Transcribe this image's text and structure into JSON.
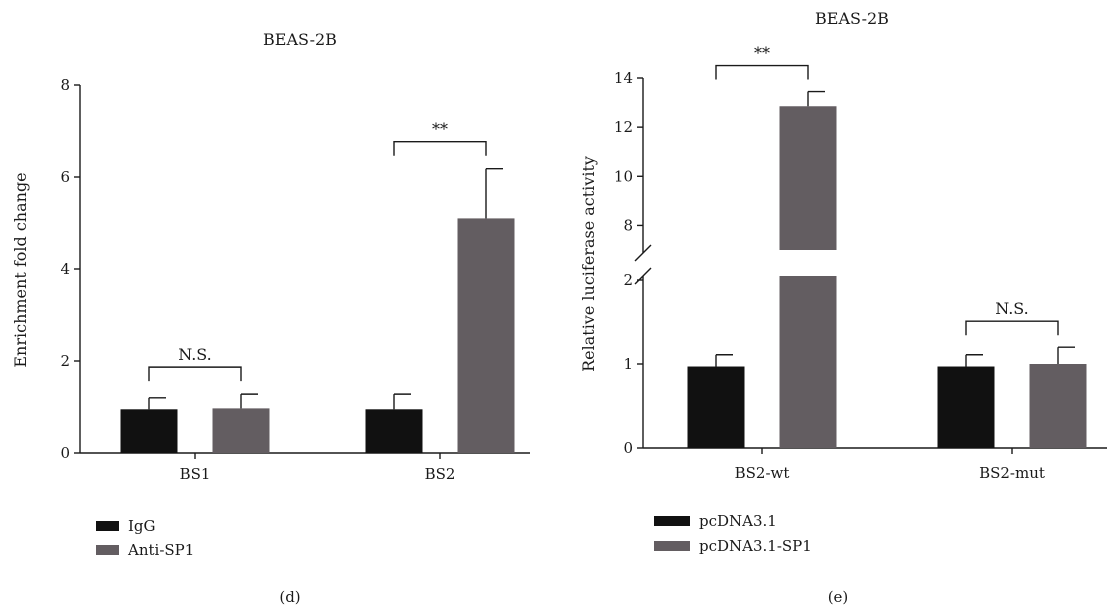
{
  "chart_data": [
    {
      "panel_label": "(d)",
      "type": "bar",
      "title": "BEAS-2B",
      "ylabel": "Enrichment fold change",
      "xlabel": "",
      "ylim": [
        0,
        8
      ],
      "yticks": [
        "0",
        "2",
        "4",
        "6",
        "8"
      ],
      "categories": [
        "BS1",
        "BS2"
      ],
      "series": [
        {
          "name": "IgG",
          "color": "#111111",
          "values": [
            0.95,
            0.95
          ],
          "errors": [
            0.25,
            0.33
          ]
        },
        {
          "name": "Anti-SP1",
          "color": "#635d61",
          "values": [
            0.97,
            5.1
          ],
          "errors": [
            0.31,
            1.08
          ]
        }
      ],
      "annotations": [
        {
          "category": "BS1",
          "text": "N.S."
        },
        {
          "category": "BS2",
          "text": "**"
        }
      ],
      "legend_position": "bottom-left",
      "grid": false
    },
    {
      "panel_label": "(e)",
      "type": "bar",
      "title": "BEAS-2B",
      "ylabel": "Relative luciferase activity",
      "xlabel": "",
      "y_axis_break": {
        "lower": [
          0,
          2
        ],
        "upper": [
          7,
          14
        ]
      },
      "yticks": [
        "0",
        "1",
        "2",
        "8",
        "10",
        "12",
        "14"
      ],
      "categories": [
        "BS2-wt",
        "BS2-mut"
      ],
      "series": [
        {
          "name": "pcDNA3.1",
          "color": "#111111",
          "values": [
            0.97,
            0.97
          ],
          "errors": [
            0.14,
            0.14
          ]
        },
        {
          "name": "pcDNA3.1-SP1",
          "color": "#635d61",
          "values": [
            12.85,
            1.0
          ],
          "errors": [
            0.6,
            0.2
          ]
        }
      ],
      "annotations": [
        {
          "category": "BS2-wt",
          "text": "**"
        },
        {
          "category": "BS2-mut",
          "text": "N.S."
        }
      ],
      "legend_position": "bottom-left",
      "grid": false
    }
  ]
}
